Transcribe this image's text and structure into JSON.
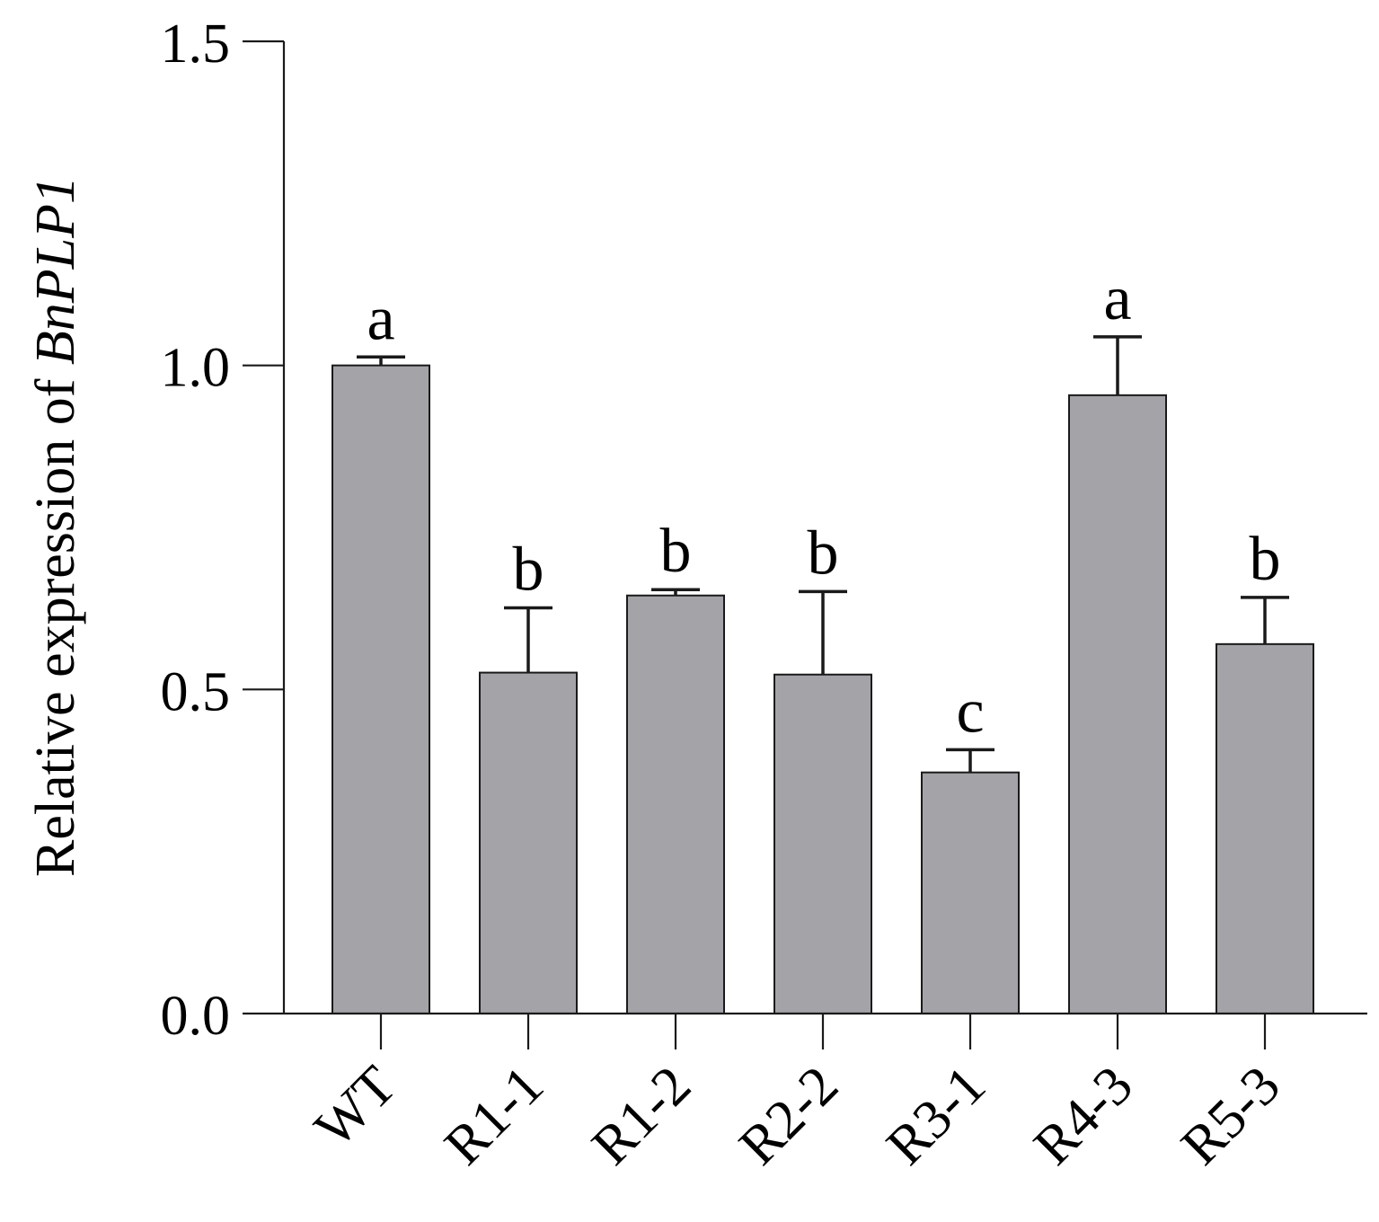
{
  "chart_data": {
    "type": "bar",
    "title": "",
    "xlabel": "",
    "ylabel_prefix": "Relative expression of ",
    "ylabel_gene": "BnPLP1",
    "ylim": [
      0,
      1.5
    ],
    "yticks": [
      0.0,
      0.5,
      1.0,
      1.5
    ],
    "ytick_labels": [
      "0.0",
      "0.5",
      "1.0",
      "1.5"
    ],
    "categories": [
      "WT",
      "R1-1",
      "R1-2",
      "R2-2",
      "R3-1",
      "R4-3",
      "R5-3"
    ],
    "values": [
      1.0,
      0.526,
      0.645,
      0.523,
      0.372,
      0.954,
      0.57
    ],
    "errors": [
      0.013,
      0.1,
      0.009,
      0.128,
      0.035,
      0.09,
      0.072
    ],
    "significance": [
      "a",
      "b",
      "b",
      "b",
      "c",
      "a",
      "b"
    ],
    "grid": false,
    "colors": {
      "bar_fill": "#a4a3a8",
      "bar_stroke": "#1a1a1a",
      "axis": "#1a1a1a",
      "text": "#000000"
    }
  }
}
